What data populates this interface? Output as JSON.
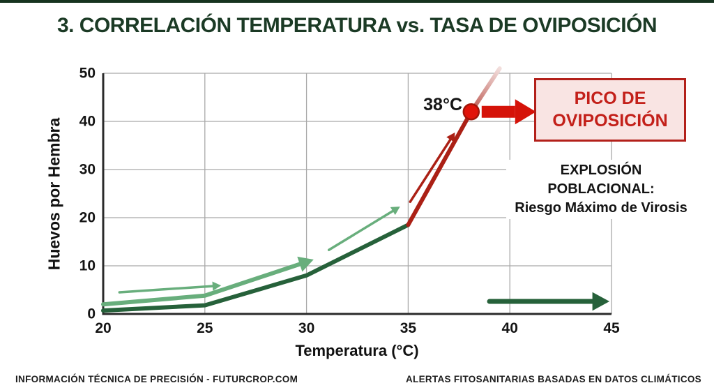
{
  "page": {
    "title": "3. CORRELACIÓN TEMPERATURA vs. TASA DE OVIPOSICIÓN",
    "footer_left": "INFORMACIÓN TÉCNICA DE PRECISIÓN - FUTURCROP.COM",
    "footer_right": "ALERTAS FITOSANITARIAS BASADAS EN DATOS CLIMÁTICOS"
  },
  "colors": {
    "title": "#1b3a25",
    "grid": "#a9a9a9",
    "axis": "#2a2a2a",
    "green_dark": "#26613a",
    "green_light": "#68ae7c",
    "red_dark": "#ab2015",
    "red_bright": "#d51309",
    "callout_border": "#b3201a",
    "callout_bg": "#f9e4e3",
    "callout_text": "#c3201a"
  },
  "annotations": {
    "peak_temp_label": "38°C",
    "peak_box_label": "PICO DE\nOVIPOSICIÓN",
    "explosion_label": "EXPLOSIÓN POBLACIONAL:\nRiesgo Máximo de Virosis"
  },
  "chart_data": {
    "type": "line",
    "title": "3. CORRELACIÓN TEMPERATURA vs. TASA DE OVIPOSICIÓN",
    "xlabel": "Temperatura (°C)",
    "ylabel": "Huevos por Hembra",
    "xlim": [
      20,
      45
    ],
    "ylim": [
      0,
      50
    ],
    "xticks": [
      20,
      25,
      30,
      35,
      40,
      45
    ],
    "yticks": [
      0,
      10,
      20,
      30,
      40,
      50
    ],
    "grid": true,
    "legend": false,
    "series": [
      {
        "name": "oviposicion-fase-verde",
        "color": "#26613a",
        "width": 6,
        "points": [
          [
            20,
            0.7
          ],
          [
            25,
            1.8
          ],
          [
            30,
            8
          ],
          [
            35,
            18.5
          ]
        ]
      },
      {
        "name": "oviposicion-fase-critica",
        "color": "#ab2015",
        "width": 6,
        "points": [
          [
            35,
            18.5
          ],
          [
            38.1,
            42
          ]
        ]
      },
      {
        "name": "proyeccion-desvanecida",
        "fade": true,
        "fade_from": "#bc574f",
        "fade_to": "#f2dedc",
        "width": 6,
        "points": [
          [
            38.1,
            42
          ],
          [
            39.5,
            51
          ]
        ]
      },
      {
        "name": "tendencia-verde-clara",
        "color": "#68ae7c",
        "width": 6,
        "arrowhead": true,
        "points": [
          [
            20,
            2
          ],
          [
            25,
            3.8
          ],
          [
            30.35,
            11.3
          ]
        ]
      }
    ],
    "annotation_arrows": [
      {
        "name": "flecha-incremento-1",
        "color": "#68ae7c",
        "width": 3.5,
        "from": [
          20.8,
          4.5
        ],
        "to": [
          25.8,
          5.9
        ]
      },
      {
        "name": "flecha-incremento-2",
        "color": "#68ae7c",
        "width": 3.5,
        "from": [
          31.1,
          13.3
        ],
        "to": [
          34.6,
          22.3
        ]
      },
      {
        "name": "flecha-subida-critica",
        "color": "#ab2015",
        "width": 3.5,
        "from": [
          35.1,
          23.3
        ],
        "to": [
          37.3,
          37.7
        ]
      },
      {
        "name": "flecha-rango-alerta",
        "color": "#26613a",
        "width": 7,
        "from": [
          39.0,
          2.6
        ],
        "to": [
          44.9,
          2.6
        ]
      }
    ],
    "peak_marker": {
      "x": 38.1,
      "y": 42,
      "radius": 11,
      "fill": "#e11309",
      "stroke": "#a31408",
      "label": "38°C"
    }
  }
}
